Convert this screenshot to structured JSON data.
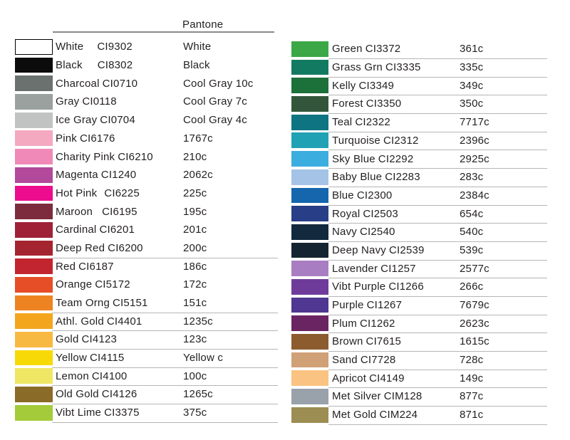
{
  "header": {
    "title": "Pantone"
  },
  "columns": [
    {
      "side": "left",
      "rows": [
        {
          "name": "White",
          "code": "CI9302",
          "pantone": "White",
          "swatch": "#ffffff",
          "swatch_border": true,
          "gap": 19,
          "underline": false
        },
        {
          "name": "Black",
          "code": "CI8302",
          "pantone": "Black",
          "swatch": "#0c0c0c",
          "gap": 21,
          "underline": false
        },
        {
          "name": "Charcoal",
          "code": "CI0710",
          "pantone": "Cool Gray 10c",
          "swatch": "#6a716e",
          "underline": false
        },
        {
          "name": "Gray",
          "code": "CI0118",
          "pantone": "Cool Gray 7c",
          "swatch": "#9aa19f",
          "underline": false
        },
        {
          "name": "Ice Gray",
          "code": "CI0704",
          "pantone": "Cool Gray 4c",
          "swatch": "#c0c3c1",
          "underline": false
        },
        {
          "name": "Pink",
          "code": "CI6176",
          "pantone": "1767c",
          "swatch": "#f4a9c1",
          "underline": false
        },
        {
          "name": "Charity Pink",
          "code": "CI6210",
          "pantone": "210c",
          "swatch": "#f089b8",
          "underline": false
        },
        {
          "name": "Magenta",
          "code": "CI1240",
          "pantone": "2062c",
          "swatch": "#b2499b",
          "underline": false
        },
        {
          "name": "Hot Pink",
          "code": "CI6225",
          "pantone": "225c",
          "swatch": "#ec0c8d",
          "gap": 10,
          "underline": false
        },
        {
          "name": "Maroon",
          "code": "CI6195",
          "pantone": "195c",
          "swatch": "#7d2c3d",
          "gap": 13,
          "underline": false
        },
        {
          "name": "Cardinal",
          "code": "CI6201",
          "pantone": "201c",
          "swatch": "#9f2138",
          "underline": false
        },
        {
          "name": "Deep Red",
          "code": "CI6200",
          "pantone": "200c",
          "swatch": "#a42430",
          "underline": true
        },
        {
          "name": "Red",
          "code": "CI6187",
          "pantone": "186c",
          "swatch": "#c2252f",
          "underline": false
        },
        {
          "name": "Orange",
          "code": "CI5172",
          "pantone": "172c",
          "swatch": "#e54e27",
          "underline": false
        },
        {
          "name": "Team Orng",
          "code": "CI5151",
          "pantone": "151c",
          "swatch": "#ee8322",
          "underline": true
        },
        {
          "name": "Athl. Gold",
          "code": "CI4401",
          "pantone": "1235c",
          "swatch": "#f3a61d",
          "underline": true
        },
        {
          "name": "Gold",
          "code": "CI4123",
          "pantone": "123c",
          "swatch": "#f8b942",
          "underline": true
        },
        {
          "name": "Yellow",
          "code": "CI4115",
          "pantone": "Yellow c",
          "swatch": "#f8d908",
          "underline": true
        },
        {
          "name": "Lemon",
          "code": "CI4100",
          "pantone": "100c",
          "swatch": "#efe763",
          "underline": true
        },
        {
          "name": "Old Gold",
          "code": "CI4126",
          "pantone": "1265c",
          "swatch": "#8a6b27",
          "underline": true
        },
        {
          "name": "Vibt Lime",
          "code": "CI3375",
          "pantone": "375c",
          "swatch": "#a3cb3a",
          "underline": true
        }
      ]
    },
    {
      "side": "right",
      "rows": [
        {
          "name": "Green",
          "code": "CI3372",
          "pantone": "361c",
          "swatch": "#3ba747",
          "underline": true
        },
        {
          "name": "Grass Grn",
          "code": "CI3335",
          "pantone": "335c",
          "swatch": "#137a62",
          "underline": true
        },
        {
          "name": "Kelly",
          "code": "CI3349",
          "pantone": "349c",
          "swatch": "#1c7039",
          "underline": true
        },
        {
          "name": "Forest",
          "code": "CI3350",
          "pantone": "350c",
          "swatch": "#33563a",
          "underline": true
        },
        {
          "name": "Teal",
          "code": "CI2322",
          "pantone": "7717c",
          "swatch": "#0e7482",
          "underline": true
        },
        {
          "name": "Turquoise",
          "code": "CI2312",
          "pantone": "2396c",
          "swatch": "#21a1b4",
          "underline": true
        },
        {
          "name": "Sky Blue",
          "code": "CI2292",
          "pantone": "2925c",
          "swatch": "#3caddf",
          "underline": true
        },
        {
          "name": "Baby Blue",
          "code": "CI2283",
          "pantone": "283c",
          "swatch": "#a4c3e6",
          "underline": true
        },
        {
          "name": "Blue",
          "code": "CI2300",
          "pantone": "2384c",
          "swatch": "#1566ac",
          "underline": true
        },
        {
          "name": "Royal",
          "code": "CI2503",
          "pantone": "654c",
          "swatch": "#283e86",
          "underline": true
        },
        {
          "name": "Navy",
          "code": "CI2540",
          "pantone": "540c",
          "swatch": "#13293d",
          "underline": true
        },
        {
          "name": "Deep Navy",
          "code": "CI2539",
          "pantone": "539c",
          "swatch": "#142430",
          "underline": true
        },
        {
          "name": "Lavender",
          "code": "CI1257",
          "pantone": "2577c",
          "swatch": "#a87dc1",
          "underline": true
        },
        {
          "name": "Vibt Purple",
          "code": "CI1266",
          "pantone": "266c",
          "swatch": "#6e3b9b",
          "underline": true
        },
        {
          "name": "Purple",
          "code": "CI1267",
          "pantone": "7679c",
          "swatch": "#4f3792",
          "underline": true
        },
        {
          "name": "Plum",
          "code": "CI1262",
          "pantone": "2623c",
          "swatch": "#6b2462",
          "underline": true
        },
        {
          "name": "Brown",
          "code": "CI7615",
          "pantone": "1615c",
          "swatch": "#8c5b2e",
          "underline": true
        },
        {
          "name": "Sand",
          "code": "CI7728",
          "pantone": "728c",
          "swatch": "#d0a077",
          "underline": true
        },
        {
          "name": "Apricot",
          "code": "CI4149",
          "pantone": "149c",
          "swatch": "#fac381",
          "underline": true
        },
        {
          "name": "Met Silver",
          "code": "CIM128",
          "pantone": "877c",
          "swatch": "#99a2ab",
          "underline": true
        },
        {
          "name": "Met Gold",
          "code": "CIM224",
          "pantone": "871c",
          "swatch": "#9c8d52",
          "underline": true
        }
      ]
    }
  ]
}
